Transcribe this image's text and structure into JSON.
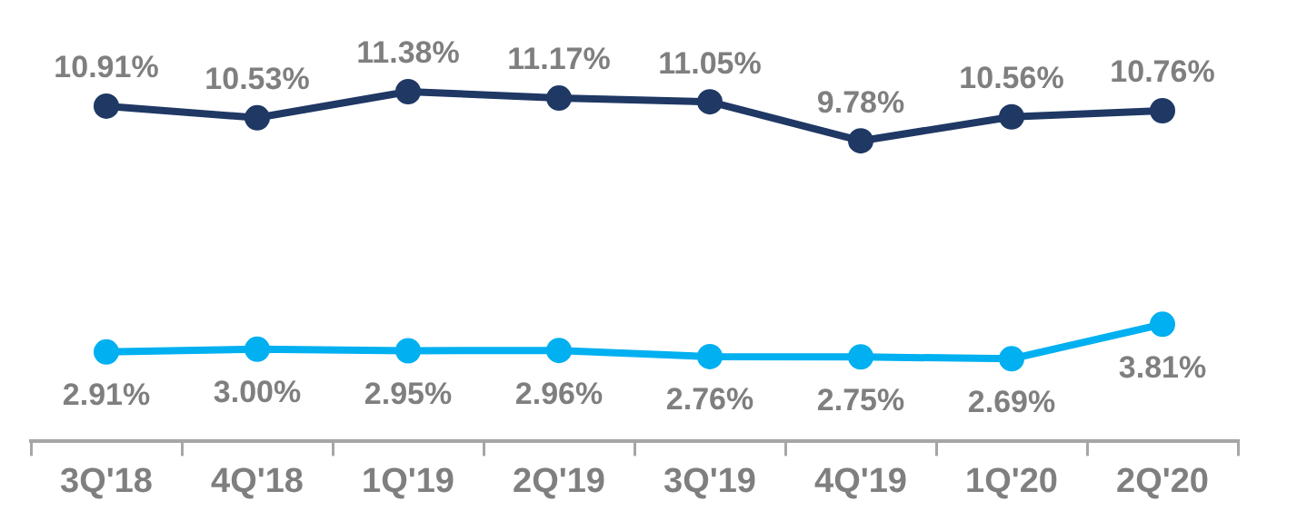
{
  "chart_data": {
    "type": "line",
    "categories": [
      "3Q'18",
      "4Q'18",
      "1Q'19",
      "2Q'19",
      "3Q'19",
      "4Q'19",
      "1Q'20",
      "2Q'20"
    ],
    "series": [
      {
        "color": "#1f3864",
        "values": [
          10.91,
          10.53,
          11.38,
          11.17,
          11.05,
          9.78,
          10.56,
          10.76
        ],
        "value_labels": [
          "10.91%",
          "10.53%",
          "11.38%",
          "11.17%",
          "11.05%",
          "9.78%",
          "10.56%",
          "10.76%"
        ]
      },
      {
        "color": "#00b0f0",
        "values": [
          2.91,
          3.0,
          2.95,
          2.96,
          2.76,
          2.75,
          2.69,
          3.81
        ],
        "value_labels": [
          "2.91%",
          "3.00%",
          "2.95%",
          "2.96%",
          "2.76%",
          "2.75%",
          "2.69%",
          "3.81%"
        ]
      }
    ],
    "marker": "circle",
    "line_style": "solid",
    "grid": false,
    "legend": false
  }
}
